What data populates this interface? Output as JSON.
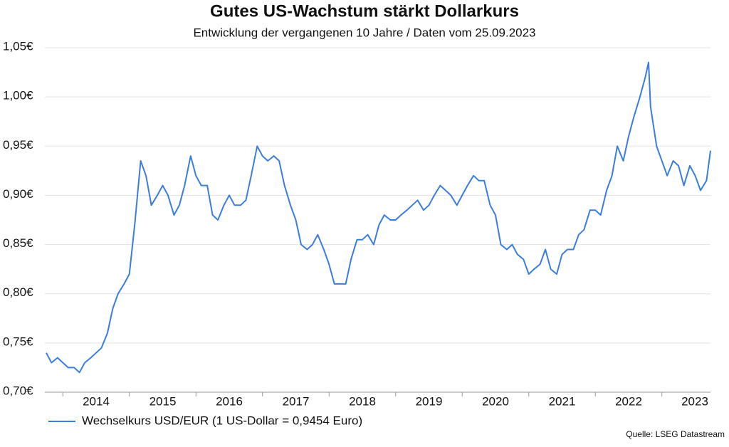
{
  "chart_data": {
    "type": "line",
    "title": "Gutes US-Wachstum stärkt Dollarkurs",
    "subtitle": "Entwicklung der vergangenen 10 Jahre / Daten vom 25.09.2023",
    "source": "Quelle: LSEG Datastream",
    "x": [
      2013.75,
      2013.83,
      2013.92,
      2014.0,
      2014.08,
      2014.17,
      2014.25,
      2014.33,
      2014.42,
      2014.5,
      2014.58,
      2014.67,
      2014.75,
      2014.83,
      2014.92,
      2015.0,
      2015.08,
      2015.17,
      2015.25,
      2015.33,
      2015.42,
      2015.5,
      2015.58,
      2015.67,
      2015.75,
      2015.83,
      2015.92,
      2016.0,
      2016.08,
      2016.17,
      2016.25,
      2016.33,
      2016.42,
      2016.5,
      2016.58,
      2016.67,
      2016.75,
      2016.83,
      2016.92,
      2017.0,
      2017.08,
      2017.17,
      2017.25,
      2017.33,
      2017.42,
      2017.5,
      2017.58,
      2017.67,
      2017.75,
      2017.83,
      2017.92,
      2018.0,
      2018.08,
      2018.17,
      2018.25,
      2018.33,
      2018.42,
      2018.5,
      2018.58,
      2018.67,
      2018.75,
      2018.83,
      2018.92,
      2019.0,
      2019.08,
      2019.17,
      2019.25,
      2019.33,
      2019.42,
      2019.5,
      2019.58,
      2019.67,
      2019.75,
      2019.83,
      2019.92,
      2020.0,
      2020.08,
      2020.17,
      2020.25,
      2020.33,
      2020.42,
      2020.5,
      2020.58,
      2020.67,
      2020.75,
      2020.83,
      2020.92,
      2021.0,
      2021.08,
      2021.17,
      2021.25,
      2021.33,
      2021.42,
      2021.5,
      2021.58,
      2021.67,
      2021.75,
      2021.83,
      2021.92,
      2022.0,
      2022.08,
      2022.17,
      2022.25,
      2022.33,
      2022.42,
      2022.5,
      2022.58,
      2022.67,
      2022.75,
      2022.8,
      2022.83,
      2022.92,
      2023.0,
      2023.08,
      2023.17,
      2023.25,
      2023.33,
      2023.42,
      2023.5,
      2023.58,
      2023.67,
      2023.73
    ],
    "series": [
      {
        "name": "Wechselkurs USD/EUR (1 US-Dollar = 0,9454 Euro)",
        "color": "#3b7ddd",
        "values": [
          0.74,
          0.73,
          0.735,
          0.73,
          0.725,
          0.725,
          0.72,
          0.73,
          0.735,
          0.74,
          0.745,
          0.76,
          0.785,
          0.8,
          0.81,
          0.82,
          0.87,
          0.935,
          0.92,
          0.89,
          0.9,
          0.91,
          0.9,
          0.88,
          0.89,
          0.91,
          0.94,
          0.92,
          0.91,
          0.91,
          0.88,
          0.875,
          0.89,
          0.9,
          0.89,
          0.89,
          0.895,
          0.92,
          0.95,
          0.94,
          0.935,
          0.94,
          0.935,
          0.91,
          0.89,
          0.875,
          0.85,
          0.845,
          0.85,
          0.86,
          0.845,
          0.83,
          0.81,
          0.81,
          0.81,
          0.835,
          0.855,
          0.855,
          0.86,
          0.85,
          0.87,
          0.88,
          0.875,
          0.875,
          0.88,
          0.885,
          0.89,
          0.895,
          0.885,
          0.89,
          0.9,
          0.91,
          0.905,
          0.9,
          0.89,
          0.9,
          0.91,
          0.92,
          0.915,
          0.915,
          0.89,
          0.88,
          0.85,
          0.845,
          0.85,
          0.84,
          0.835,
          0.82,
          0.825,
          0.83,
          0.845,
          0.825,
          0.82,
          0.84,
          0.845,
          0.845,
          0.86,
          0.865,
          0.885,
          0.885,
          0.88,
          0.905,
          0.92,
          0.95,
          0.935,
          0.96,
          0.98,
          1.0,
          1.02,
          1.035,
          0.99,
          0.95,
          0.935,
          0.92,
          0.935,
          0.93,
          0.91,
          0.93,
          0.92,
          0.905,
          0.915,
          0.9454
        ]
      }
    ],
    "xlim": [
      2013.73,
      2023.73
    ],
    "xticks": [
      2014,
      2015,
      2016,
      2017,
      2018,
      2019,
      2020,
      2021,
      2022,
      2023
    ],
    "ylim": [
      0.7,
      1.05
    ],
    "yticks": [
      {
        "value": 0.7,
        "label": "0,70€"
      },
      {
        "value": 0.75,
        "label": "0,75€"
      },
      {
        "value": 0.8,
        "label": "0,80€"
      },
      {
        "value": 0.85,
        "label": "0,85€"
      },
      {
        "value": 0.9,
        "label": "0,90€"
      },
      {
        "value": 0.95,
        "label": "0,95€"
      },
      {
        "value": 1.0,
        "label": "1,00€"
      },
      {
        "value": 1.05,
        "label": "1,05€"
      }
    ],
    "grid": true
  }
}
